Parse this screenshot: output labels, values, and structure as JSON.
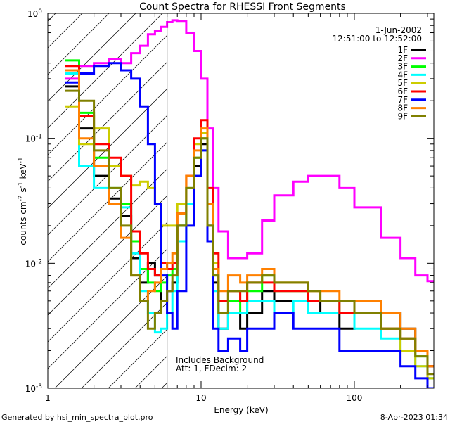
{
  "chart_data": {
    "type": "line",
    "title": "Count Spectra for RHESSI Front Segments",
    "xlabel": "Energy (keV)",
    "ylabel": "counts cm⁻² s⁻¹ keV⁻¹",
    "ylabel_parts": {
      "base": "counts cm",
      "e1": "-2",
      "mid1": " s",
      "e2": "-1",
      "mid2": " keV",
      "e3": "-1"
    },
    "x_scale": "log",
    "y_scale": "log",
    "xlim": [
      1,
      330
    ],
    "ylim": [
      0.001,
      1.0
    ],
    "x_ticks": [
      {
        "value": 1,
        "label": "1"
      },
      {
        "value": 10,
        "label": "10"
      },
      {
        "value": 100,
        "label": "100"
      }
    ],
    "y_ticks": [
      {
        "value": 0.001,
        "base": "10",
        "exp": "-3"
      },
      {
        "value": 0.01,
        "base": "10",
        "exp": "-2"
      },
      {
        "value": 0.1,
        "base": "10",
        "exp": "-1"
      },
      {
        "value": 1,
        "base": "10",
        "exp": "0"
      }
    ],
    "date": "1-Jun-2002",
    "time_range": "12:51:00 to 12:52:00",
    "shaded_region_max_energy": 6,
    "annotations": [
      "Includes Background",
      "Att: 1, FDecim: 2"
    ],
    "legend_position": "top-right",
    "series": [
      {
        "name": "1F",
        "color": "#000000",
        "x": [
          1.3,
          1.6,
          2,
          2.5,
          3,
          3.5,
          4,
          4.5,
          5,
          5.5,
          6,
          6.5,
          7,
          8,
          9,
          10,
          11,
          12,
          13,
          15,
          18,
          20,
          25,
          30,
          40,
          50,
          60,
          80,
          100,
          150,
          200,
          250,
          300
        ],
        "y": [
          0.26,
          0.12,
          0.05,
          0.033,
          0.024,
          0.011,
          0.007,
          0.01,
          0.008,
          0.005,
          0.006,
          0.007,
          0.02,
          0.03,
          0.06,
          0.09,
          0.02,
          0.007,
          0.003,
          0.004,
          0.003,
          0.004,
          0.006,
          0.005,
          0.005,
          0.005,
          0.004,
          0.003,
          0.005,
          0.004,
          0.003,
          0.002,
          0.0015
        ]
      },
      {
        "name": "2F",
        "color": "#ff00ff",
        "x": [
          1.3,
          1.6,
          2,
          2.5,
          3,
          3.5,
          4,
          4.5,
          5,
          5.5,
          6,
          6.5,
          7,
          8,
          9,
          10,
          11,
          12,
          13,
          15,
          18,
          20,
          25,
          30,
          40,
          50,
          60,
          80,
          100,
          150,
          200,
          250,
          300
        ],
        "y": [
          0.3,
          0.38,
          0.4,
          0.43,
          0.4,
          0.48,
          0.55,
          0.68,
          0.72,
          0.78,
          0.85,
          0.88,
          0.87,
          0.7,
          0.5,
          0.3,
          0.12,
          0.04,
          0.018,
          0.011,
          0.011,
          0.012,
          0.022,
          0.035,
          0.045,
          0.05,
          0.05,
          0.04,
          0.028,
          0.016,
          0.011,
          0.008,
          0.0072
        ]
      },
      {
        "name": "3F",
        "color": "#00ff00",
        "x": [
          1.3,
          1.6,
          2,
          2.5,
          3,
          3.5,
          4,
          4.5,
          5,
          5.5,
          6,
          6.5,
          7,
          8,
          9,
          10,
          11,
          12,
          13,
          15,
          18,
          20,
          25,
          30,
          40,
          50,
          60,
          80,
          100,
          150,
          200,
          250,
          300
        ],
        "y": [
          0.42,
          0.16,
          0.07,
          0.04,
          0.03,
          0.015,
          0.009,
          0.007,
          0.006,
          0.007,
          0.008,
          0.009,
          0.02,
          0.04,
          0.07,
          0.1,
          0.03,
          0.008,
          0.004,
          0.005,
          0.004,
          0.006,
          0.008,
          0.006,
          0.006,
          0.005,
          0.005,
          0.004,
          0.004,
          0.003,
          0.0025,
          0.0018,
          0.0012
        ]
      },
      {
        "name": "4F",
        "color": "#00ffff",
        "x": [
          1.3,
          1.6,
          2,
          2.5,
          3,
          3.5,
          4,
          4.5,
          5,
          5.5,
          6,
          6.5,
          7,
          8,
          9,
          10,
          11,
          12,
          13,
          15,
          18,
          20,
          25,
          30,
          40,
          50,
          60,
          80,
          100,
          150,
          200,
          250,
          300
        ],
        "y": [
          0.33,
          0.06,
          0.04,
          0.03,
          0.028,
          0.012,
          0.006,
          0.004,
          0.0028,
          0.003,
          0.004,
          0.006,
          0.015,
          0.03,
          0.05,
          0.08,
          0.02,
          0.006,
          0.003,
          0.004,
          0.004,
          0.005,
          0.005,
          0.004,
          0.005,
          0.004,
          0.004,
          0.004,
          0.003,
          0.0025,
          0.002,
          0.0015,
          0.0012
        ]
      },
      {
        "name": "5F",
        "color": "#cccc00",
        "x": [
          1.3,
          1.6,
          2,
          2.5,
          3,
          3.5,
          4,
          4.5,
          5,
          5.5,
          6,
          6.5,
          7,
          8,
          9,
          10,
          11,
          12,
          13,
          15,
          18,
          20,
          25,
          30,
          40,
          50,
          60,
          80,
          100,
          150,
          200,
          250,
          300
        ],
        "y": [
          0.18,
          0.09,
          0.12,
          0.06,
          0.05,
          0.042,
          0.045,
          0.04,
          0.03,
          0.02,
          0.02,
          0.02,
          0.03,
          0.05,
          0.09,
          0.11,
          0.03,
          0.01,
          0.005,
          0.006,
          0.005,
          0.007,
          0.008,
          0.007,
          0.007,
          0.006,
          0.005,
          0.005,
          0.004,
          0.003,
          0.002,
          0.0015,
          0.0012
        ]
      },
      {
        "name": "6F",
        "color": "#ff0000",
        "x": [
          1.3,
          1.6,
          2,
          2.5,
          3,
          3.5,
          4,
          4.5,
          5,
          5.5,
          6,
          6.5,
          7,
          8,
          9,
          10,
          11,
          12,
          13,
          15,
          18,
          20,
          25,
          30,
          40,
          50,
          60,
          80,
          100,
          150,
          200,
          250,
          300
        ],
        "y": [
          0.38,
          0.15,
          0.09,
          0.07,
          0.05,
          0.018,
          0.012,
          0.009,
          0.008,
          0.01,
          0.009,
          0.01,
          0.025,
          0.05,
          0.1,
          0.14,
          0.04,
          0.012,
          0.005,
          0.006,
          0.005,
          0.007,
          0.007,
          0.006,
          0.006,
          0.005,
          0.005,
          0.004,
          0.004,
          0.003,
          0.0025,
          0.002,
          0.0015
        ]
      },
      {
        "name": "7F",
        "color": "#0000ff",
        "x": [
          1.3,
          1.6,
          2,
          2.5,
          3,
          3.5,
          4,
          4.5,
          5,
          5.5,
          6,
          6.5,
          7,
          8,
          9,
          10,
          11,
          12,
          13,
          15,
          18,
          20,
          25,
          30,
          40,
          50,
          60,
          80,
          100,
          150,
          200,
          250,
          300
        ],
        "y": [
          0.28,
          0.33,
          0.38,
          0.4,
          0.35,
          0.3,
          0.18,
          0.09,
          0.03,
          0.008,
          0.004,
          0.003,
          0.006,
          0.02,
          0.05,
          0.08,
          0.015,
          0.003,
          0.002,
          0.0025,
          0.002,
          0.003,
          0.003,
          0.004,
          0.003,
          0.003,
          0.003,
          0.002,
          0.002,
          0.002,
          0.0015,
          0.0012,
          0.001
        ]
      },
      {
        "name": "8F",
        "color": "#ff8000",
        "x": [
          1.3,
          1.6,
          2,
          2.5,
          3,
          3.5,
          4,
          4.5,
          5,
          5.5,
          6,
          6.5,
          7,
          8,
          9,
          10,
          11,
          12,
          13,
          15,
          18,
          20,
          25,
          30,
          40,
          50,
          60,
          80,
          100,
          150,
          200,
          250,
          300
        ],
        "y": [
          0.35,
          0.1,
          0.06,
          0.03,
          0.016,
          0.008,
          0.005,
          0.006,
          0.007,
          0.009,
          0.01,
          0.012,
          0.025,
          0.05,
          0.08,
          0.12,
          0.03,
          0.009,
          0.006,
          0.008,
          0.007,
          0.008,
          0.009,
          0.007,
          0.007,
          0.006,
          0.006,
          0.005,
          0.005,
          0.004,
          0.003,
          0.002,
          0.0015
        ]
      },
      {
        "name": "9F",
        "color": "#808000",
        "x": [
          1.3,
          1.6,
          2,
          2.5,
          3,
          3.5,
          4,
          4.5,
          5,
          5.5,
          6,
          6.5,
          7,
          8,
          9,
          10,
          11,
          12,
          13,
          15,
          18,
          20,
          25,
          30,
          40,
          50,
          60,
          80,
          100,
          150,
          200,
          250,
          300
        ],
        "y": [
          0.24,
          0.2,
          0.08,
          0.04,
          0.02,
          0.008,
          0.005,
          0.003,
          0.004,
          0.005,
          0.006,
          0.008,
          0.02,
          0.04,
          0.07,
          0.1,
          0.02,
          0.008,
          0.004,
          0.006,
          0.006,
          0.007,
          0.008,
          0.007,
          0.007,
          0.006,
          0.005,
          0.005,
          0.004,
          0.003,
          0.0025,
          0.0018,
          0.0013
        ]
      }
    ]
  },
  "footer": {
    "left": "Generated by hsi_min_spectra_plot.pro",
    "right": "8-Apr-2023 01:34"
  }
}
